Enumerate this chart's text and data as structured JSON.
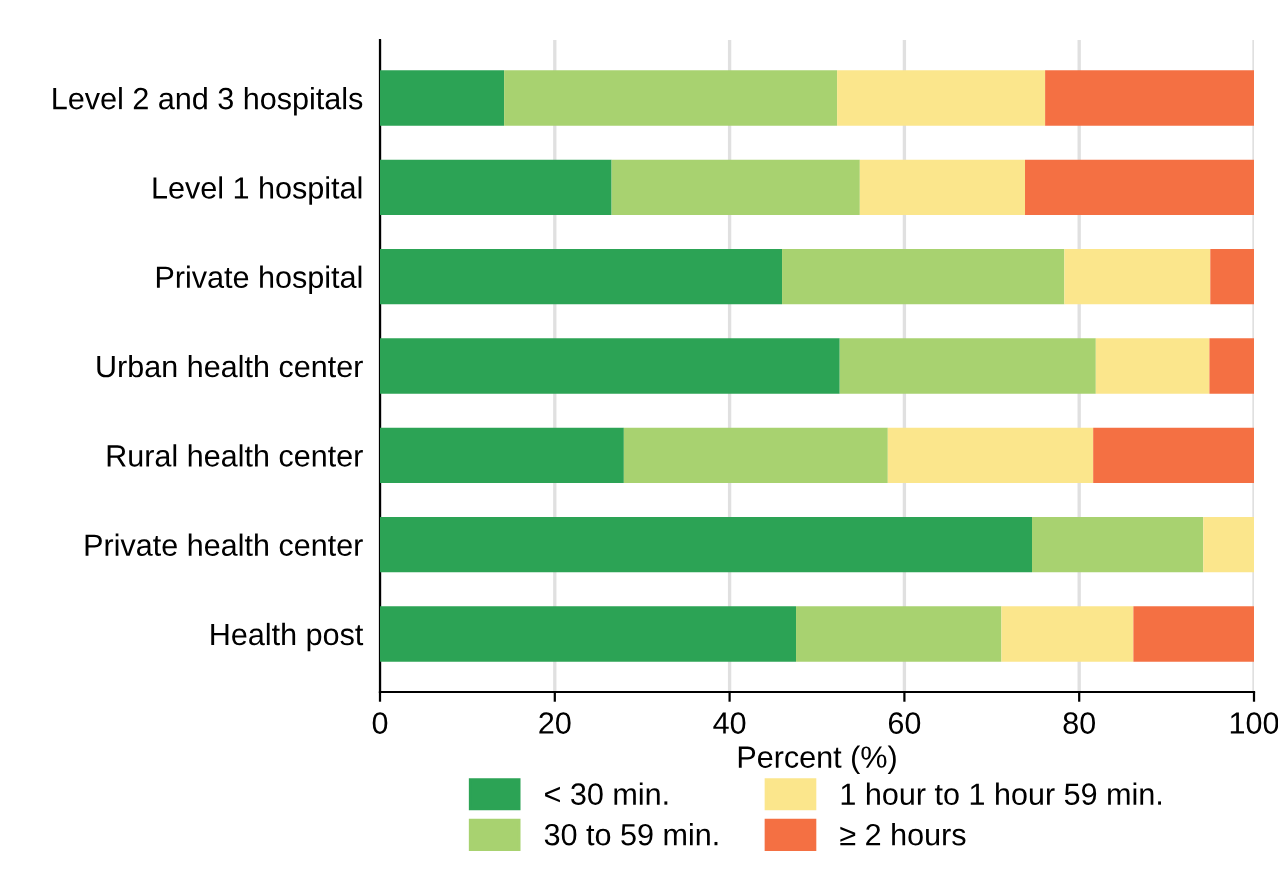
{
  "chart_data": {
    "type": "bar",
    "orientation": "horizontal",
    "stacked": true,
    "xlabel": "Percent (%)",
    "categories": [
      "Level 2 and 3 hospitals",
      "Level 1 hospital",
      "Private hospital",
      "Urban health center",
      "Rural health center",
      "Private health center",
      "Health post"
    ],
    "series": [
      {
        "name": "< 30 min.",
        "color": "#2ca355",
        "values": [
          14.2,
          26.5,
          46.0,
          52.6,
          27.9,
          74.6,
          47.6
        ]
      },
      {
        "name": "30 to 59 min.",
        "color": "#a8d270",
        "values": [
          38.1,
          28.4,
          32.3,
          29.3,
          30.2,
          19.6,
          23.5
        ]
      },
      {
        "name": "1 hour to 1 hour 59 min.",
        "color": "#fbe68c",
        "values": [
          23.8,
          18.9,
          16.7,
          13.0,
          23.5,
          5.8,
          15.1
        ]
      },
      {
        "name": "≥ 2 hours",
        "color": "#f47043",
        "values": [
          23.9,
          26.2,
          5.0,
          5.1,
          18.4,
          0,
          13.8
        ]
      }
    ],
    "xlim": [
      0,
      100
    ],
    "xticks": [
      0,
      20,
      40,
      60,
      80,
      100
    ],
    "grid": "x",
    "legend": "bottom"
  }
}
